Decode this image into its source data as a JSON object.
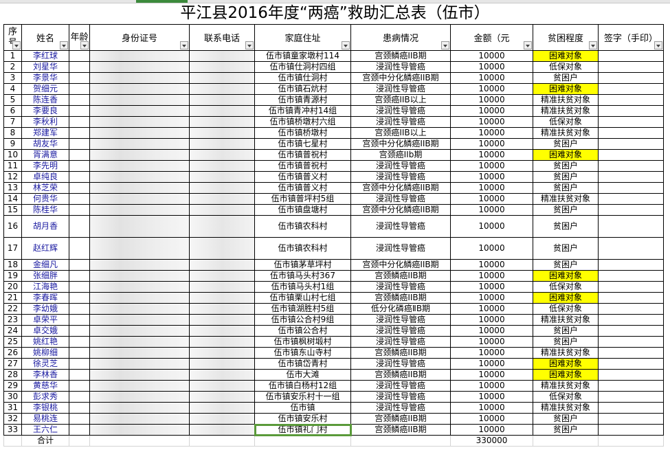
{
  "title": "平江县2016年度“两癌”救助汇总表（伍市）",
  "headers": [
    "序号",
    "姓名",
    "年龄",
    "身份证号",
    "联系电话",
    "家庭住址",
    "患病情况",
    "金额（元",
    "贫困程度",
    "签字（手印）"
  ],
  "highlight_color": "#ffff00",
  "rows": [
    {
      "no": "1",
      "name": "李红球",
      "addr": "伍市镇童家墩村114",
      "disease": "宫颈鳞癌IIB期",
      "amount": "10000",
      "level": "困难对象",
      "hl": true
    },
    {
      "no": "2",
      "name": "刘星华",
      "addr": "伍市镇仕洞村四组",
      "disease": "浸润性导管癌",
      "amount": "10000",
      "level": "低保对象"
    },
    {
      "no": "3",
      "name": "李景华",
      "addr": "伍市镇仕洞村",
      "disease": "宫颈中分化鳞癌IIB期",
      "amount": "10000",
      "level": "贫困户"
    },
    {
      "no": "4",
      "name": "贺细元",
      "addr": "伍市镇石炕村",
      "disease": "浸润性导管癌",
      "amount": "10000",
      "level": "困难对象",
      "hl": true
    },
    {
      "no": "5",
      "name": "陈连香",
      "addr": "伍市镇青源村",
      "disease": "宫颈癌IIB以上",
      "amount": "10000",
      "level": "精准扶贫对象"
    },
    {
      "no": "6",
      "name": "李要良",
      "addr": "伍市镇青冲村14组",
      "disease": "浸润性导管癌",
      "amount": "10000",
      "level": "精准扶贫对象"
    },
    {
      "no": "7",
      "name": "李秋利",
      "addr": "伍市镇桥墩村六组",
      "disease": "浸润性导管癌",
      "amount": "10000",
      "level": "低保对象"
    },
    {
      "no": "8",
      "name": "郑建军",
      "addr": "伍市镇桥墩村",
      "disease": "宫颈癌IIB以上",
      "amount": "10000",
      "level": "精准扶贫对象"
    },
    {
      "no": "9",
      "name": "胡友华",
      "addr": "伍市镇七星村",
      "disease": "宫颈中分化鳞癌IIB期",
      "amount": "10000",
      "level": "贫困户"
    },
    {
      "no": "10",
      "name": "胥满意",
      "addr": "伍市镇普祝村",
      "disease": "宫颈癌IIb期",
      "amount": "10000",
      "level": "困难对象",
      "hl": true
    },
    {
      "no": "11",
      "name": "李先明",
      "addr": "伍市镇普祝村",
      "disease": "浸润性导管癌",
      "amount": "10000",
      "level": "贫困户"
    },
    {
      "no": "12",
      "name": "卓纯良",
      "addr": "伍市镇普义村",
      "disease": "浸润性导管癌",
      "amount": "10000",
      "level": "贫困户"
    },
    {
      "no": "13",
      "name": "林芝荣",
      "addr": "伍市镇普义村",
      "disease": "宫颈中分化鳞癌IIB期",
      "amount": "10000",
      "level": "贫困户"
    },
    {
      "no": "14",
      "name": "何贵华",
      "addr": "伍市镇普坪村5组",
      "disease": "浸润性导管癌",
      "amount": "10000",
      "level": "精准扶贫对象"
    },
    {
      "no": "15",
      "name": "陈桂华",
      "addr": "伍市镇盘塘村",
      "disease": "宫颈中分化鳞癌IIB期",
      "amount": "10000",
      "level": "贫困户"
    },
    {
      "no": "16",
      "name": "胡月香",
      "addr": "伍市镇农科村",
      "disease": "浸润性导管癌",
      "amount": "10000",
      "level": "贫困户",
      "tall": true
    },
    {
      "no": "17",
      "name": "赵红辉",
      "addr": "伍市镇农科村",
      "disease": "浸润性导管癌",
      "amount": "10000",
      "level": "贫困户",
      "tall": true
    },
    {
      "no": "18",
      "name": "金细凡",
      "addr": "伍市镇茅草坪村",
      "disease": "宫颈中分化鳞癌IIB期",
      "amount": "10000",
      "level": "贫困户"
    },
    {
      "no": "19",
      "name": "张细胖",
      "addr": "伍市镇马头村367",
      "disease": "宫颈鳞癌IIB期",
      "amount": "10000",
      "level": "困难对象",
      "hl": true
    },
    {
      "no": "20",
      "name": "江海艳",
      "addr": "伍市镇马头村1组",
      "disease": "浸润性导管癌",
      "amount": "10000",
      "level": "低保对象"
    },
    {
      "no": "21",
      "name": "李春晖",
      "addr": "伍市镇栗山村七组",
      "disease": "宫颈鳞癌IIB期",
      "amount": "10000",
      "level": "困难对象",
      "hl": true
    },
    {
      "no": "22",
      "name": "李幼娥",
      "addr": "伍市镇湖胜村5组",
      "disease": "低分化磷癌ⅡB期",
      "amount": "10000",
      "level": "低保对象"
    },
    {
      "no": "23",
      "name": "卓荣平",
      "addr": "伍市镇公合村9组",
      "disease": "浸润性导管癌",
      "amount": "10000",
      "level": "精准扶贫对象"
    },
    {
      "no": "24",
      "name": "卓交娥",
      "addr": "伍市镇公合村",
      "disease": "浸润性导管癌",
      "amount": "10000",
      "level": "贫困户"
    },
    {
      "no": "25",
      "name": "姚红艳",
      "addr": "伍市镇枫树塅村",
      "disease": "浸润性导管癌",
      "amount": "10000",
      "level": "贫困户"
    },
    {
      "no": "26",
      "name": "姚柳细",
      "addr": "伍市镇东山寺村",
      "disease": "宫颈鳞癌IIB期",
      "amount": "10000",
      "level": "精准扶贫对象"
    },
    {
      "no": "27",
      "name": "徐灵芝",
      "addr": "伍市镇岱青村",
      "disease": "浸润性导管癌",
      "amount": "10000",
      "level": "困难对象",
      "hl": true
    },
    {
      "no": "28",
      "name": "李林香",
      "addr": "伍市大滩",
      "disease": "宫颈鳞癌IIB期",
      "amount": "10000",
      "level": "困难对象",
      "hl": true
    },
    {
      "no": "29",
      "name": "黄慈华",
      "addr": "伍市镇白杨村12组",
      "disease": "浸润性导管癌",
      "amount": "10000",
      "level": "精准扶贫对象"
    },
    {
      "no": "30",
      "name": "彭求秀",
      "addr": "伍市镇安乐村十一组",
      "disease": "浸润性导管癌",
      "amount": "10000",
      "level": "低保对象"
    },
    {
      "no": "31",
      "name": "李银桃",
      "addr": "伍市镇",
      "disease": "浸润性导管癌",
      "amount": "10000",
      "level": "精准扶贫对象"
    },
    {
      "no": "32",
      "name": "易桃连",
      "addr": "伍市镇安乐村",
      "disease": "宫颈鳞癌IIB期",
      "amount": "10000",
      "level": "贫困户"
    },
    {
      "no": "33",
      "name": "王六仁",
      "addr": "伍市镇礼门村",
      "disease": "宫颈鳞癌IIB期",
      "amount": "10000",
      "level": "贫困户"
    }
  ],
  "total": {
    "label": "合计",
    "amount": "330000"
  }
}
